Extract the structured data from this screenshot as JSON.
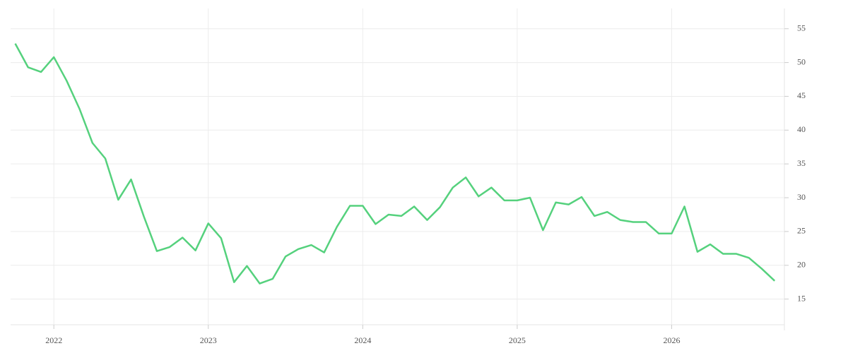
{
  "chart_data": {
    "type": "line",
    "x": [
      2021.75,
      2021.833,
      2021.917,
      2022.0,
      2022.083,
      2022.167,
      2022.25,
      2022.333,
      2022.417,
      2022.5,
      2022.583,
      2022.667,
      2022.75,
      2022.833,
      2022.917,
      2023.0,
      2023.083,
      2023.167,
      2023.25,
      2023.333,
      2023.417,
      2023.5,
      2023.583,
      2023.667,
      2023.75,
      2023.833,
      2023.917,
      2024.0,
      2024.083,
      2024.167,
      2024.25,
      2024.333,
      2024.417,
      2024.5,
      2024.583,
      2024.667,
      2024.75,
      2024.833,
      2024.917,
      2025.0,
      2025.083,
      2025.167,
      2025.25,
      2025.333,
      2025.417,
      2025.5,
      2025.583,
      2025.667,
      2025.75,
      2025.833,
      2025.917,
      2026.0,
      2026.083,
      2026.167,
      2026.25,
      2026.333,
      2026.417,
      2026.5,
      2026.583,
      2026.667
    ],
    "series": [
      {
        "color": "#55d17d",
        "values": [
          52.8,
          49.3,
          48.6,
          50.8,
          47.3,
          43.1,
          38.1,
          35.8,
          29.7,
          32.7,
          27.2,
          22.1,
          22.7,
          24.1,
          22.2,
          26.2,
          24.0,
          17.5,
          19.9,
          17.3,
          18.0,
          21.3,
          22.4,
          23.0,
          21.9,
          25.7,
          28.8,
          28.8,
          26.1,
          27.5,
          27.3,
          28.7,
          26.7,
          28.6,
          31.5,
          33.0,
          30.2,
          31.5,
          29.6,
          29.6,
          30.0,
          25.2,
          29.3,
          29.0,
          30.1,
          27.3,
          27.9,
          26.7,
          26.4,
          26.4,
          24.7,
          24.7,
          28.7,
          22.0,
          23.1,
          21.7,
          21.7,
          21.1,
          19.5,
          17.7
        ]
      }
    ],
    "xlim": [
      2021.72,
      2026.73
    ],
    "xticks": [
      2022,
      2023,
      2024,
      2025,
      2026
    ],
    "ylim": [
      11.2,
      58
    ],
    "yticks": [
      15,
      20,
      25,
      30,
      35,
      40,
      45,
      50,
      55
    ],
    "grid": true
  }
}
